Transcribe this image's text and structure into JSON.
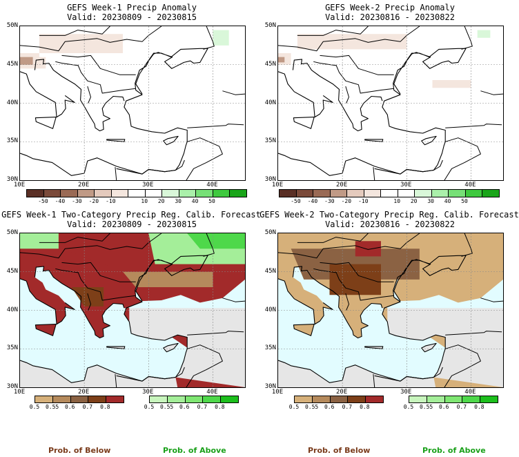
{
  "panels": [
    {
      "title": "GEFS Week-1 Precip Anomaly",
      "valid": "Valid: 20230809 - 20230815"
    },
    {
      "title": "GEFS Week-2 Precip Anomaly",
      "valid": "Valid: 20230816 - 20230822"
    },
    {
      "title": "GEFS Week-1 Two-Category Precip Reg. Calib. Forecast",
      "valid": "Valid: 20230809 - 20230815"
    },
    {
      "title": "GEFS Week-2 Two-Category Precip Reg. Calib. Forecast",
      "valid": "Valid: 20230816 - 20230822"
    }
  ],
  "axes": {
    "lat_labels": [
      "50N",
      "45N",
      "40N",
      "35N",
      "30N"
    ],
    "lon_labels": [
      "10E",
      "20E",
      "30E",
      "40E"
    ]
  },
  "anomaly_colorbar": {
    "labels": [
      "-50",
      "-40",
      "-30",
      "-20",
      "-10",
      "10",
      "20",
      "30",
      "40",
      "50"
    ],
    "colors": [
      "#5a2f25",
      "#7b4a3a",
      "#9a6a55",
      "#c09a86",
      "#e4cabd",
      "#f4e6de",
      "#ffffff",
      "#ffffff",
      "#d9f7d9",
      "#aaf0aa",
      "#77e077",
      "#3fc93f",
      "#1aa51a"
    ]
  },
  "prob_colorbar": {
    "below_labels": [
      "0.5",
      "0.55",
      "0.6",
      "0.7",
      "0.8"
    ],
    "above_labels": [
      "0.5",
      "0.55",
      "0.6",
      "0.7",
      "0.8"
    ],
    "below_colors": [
      "#d6b07a",
      "#b58a5c",
      "#8b6243",
      "#7d3f18",
      "#a22a2a"
    ],
    "above_colors": [
      "#c8f5bd",
      "#a4ee99",
      "#7fe672",
      "#4ed84a",
      "#1dbf1d"
    ]
  },
  "footer": {
    "below_label": "Prob. of Below",
    "above_label": "Prob. of Above",
    "below_color": "#7a3b1b",
    "above_color": "#19a019"
  },
  "map_colors": {
    "sea": "#e2fcff",
    "no_data": "#e6e6e6",
    "land": "#ffffff"
  }
}
